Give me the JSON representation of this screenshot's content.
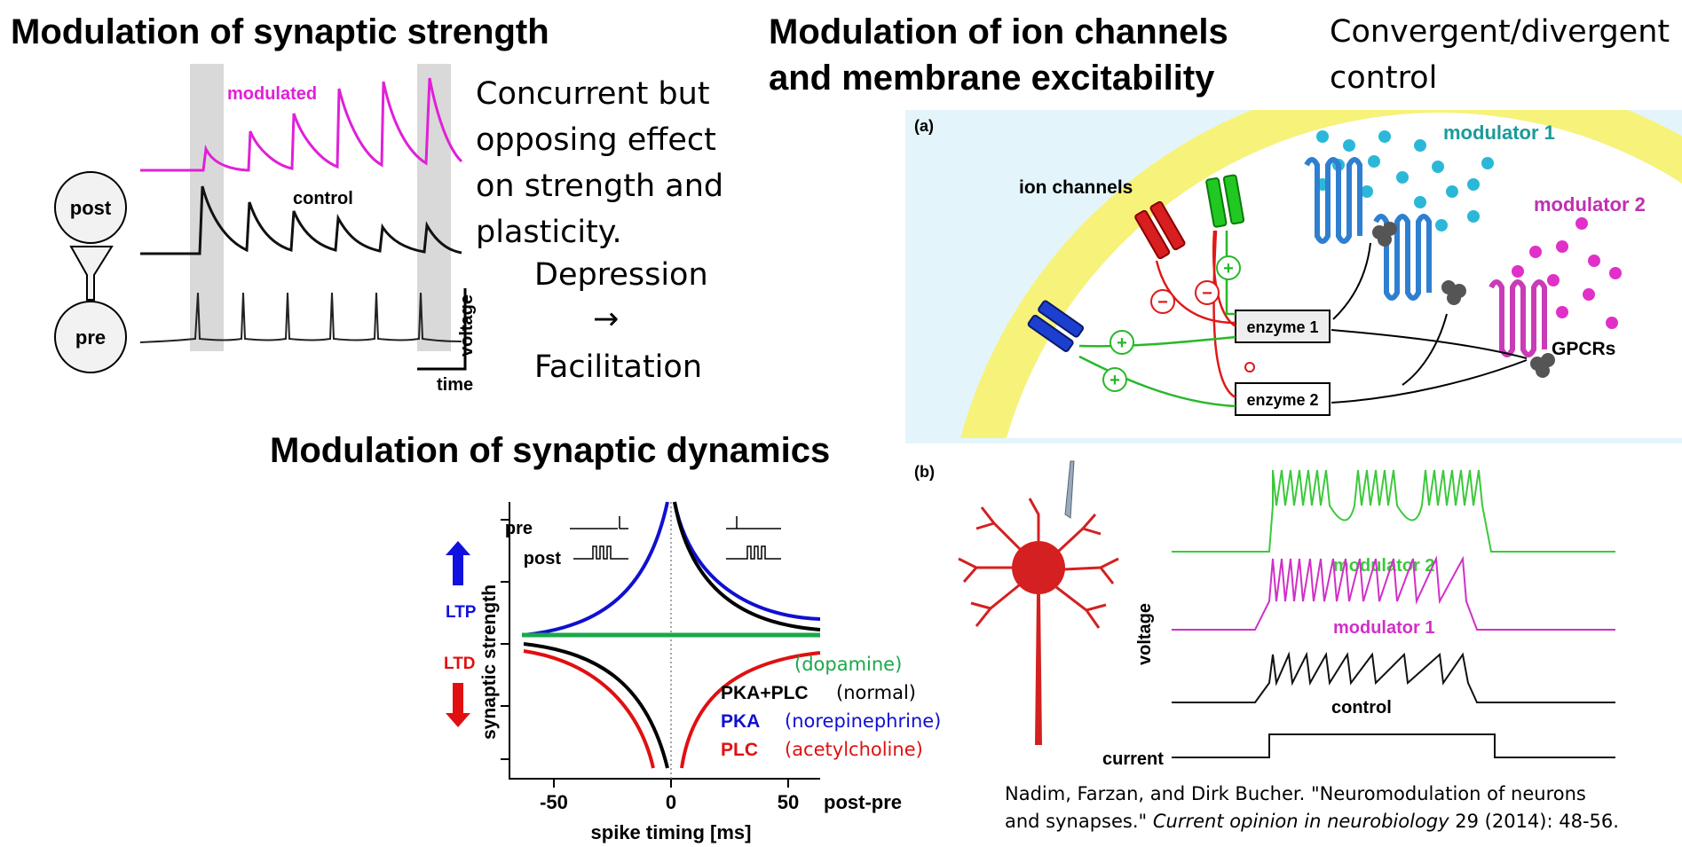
{
  "headings": {
    "synaptic_strength": "Modulation of synaptic strength",
    "ion_channels_line1": "Modulation of ion channels",
    "ion_channels_line2": "and membrane excitability",
    "convergent_line1": "Convergent/divergent",
    "convergent_line2": "control",
    "synaptic_dynamics": "Modulation of synaptic dynamics"
  },
  "strength_panel": {
    "trace_labels": {
      "modulated": "modulated",
      "control": "control"
    },
    "neuron_labels": {
      "post": "post",
      "pre": "pre"
    },
    "scale": {
      "y": "voltage",
      "x": "time"
    },
    "colors": {
      "modulated": "#e020d8",
      "control": "#111111",
      "highlight": "#d9d9d9"
    },
    "text_lines": [
      "Concurrent but",
      "opposing effect",
      "on strength and",
      "plasticity."
    ],
    "depression": "Depression",
    "arrow": "→",
    "facilitation": "Facilitation"
  },
  "panel_a": {
    "letter": "(a)",
    "labels": {
      "ion_channels": "ion channels",
      "modulator1": "modulator 1",
      "modulator2": "modulator 2",
      "gpcrs": "GPCRs",
      "enzyme1": "enzyme 1",
      "enzyme2": "enzyme 2",
      "plus": "+",
      "minus": "−"
    },
    "colors": {
      "background": "#e3f5fb",
      "membrane": "#f7f27a",
      "channel_red": "#d81e1e",
      "channel_green": "#22c822",
      "channel_blue": "#1c3fcf",
      "modulator1": "#2bb8d8",
      "modulator2": "#e030c8",
      "receptor1": "#2f7fd0",
      "receptor2": "#c83cb8"
    }
  },
  "panel_b": {
    "letter": "(b)",
    "labels": {
      "modulator2": "modulator 2",
      "modulator1": "modulator 1",
      "control": "control",
      "voltage": "voltage",
      "current": "current"
    },
    "colors": {
      "modulator2": "#3cc83c",
      "modulator1": "#d030c8",
      "control": "#111111",
      "neuron": "#d42020"
    }
  },
  "stdp": {
    "inset": {
      "pre": "pre",
      "post": "post"
    },
    "ylabel": "synaptic strength",
    "ltp": "LTP",
    "ltd": "LTD",
    "xlabel": "spike timing [ms]",
    "x_axis_end_label": "post-pre",
    "xticks": [
      "-50",
      "0",
      "50"
    ],
    "legend": [
      {
        "name": "",
        "note": "(dopamine)",
        "color": "#1aa84a"
      },
      {
        "name": "PKA+PLC",
        "note": "(normal)",
        "color": "#000000"
      },
      {
        "name": "PKA",
        "note": "(norepinephrine)",
        "color": "#1010d0"
      },
      {
        "name": "PLC",
        "note": "(acetylcholine)",
        "color": "#e01010"
      }
    ],
    "colors": {
      "ltp_arrow": "#1010e0",
      "ltd_arrow": "#e01010"
    }
  },
  "citation": {
    "authors": "Nadim, Farzan, and Dirk Bucher. \"Neuromodulation of neurons",
    "title_cont": "and synapses.\"",
    "journal": "Current opinion in neurobiology",
    "details": "29 (2014): 48-56."
  }
}
